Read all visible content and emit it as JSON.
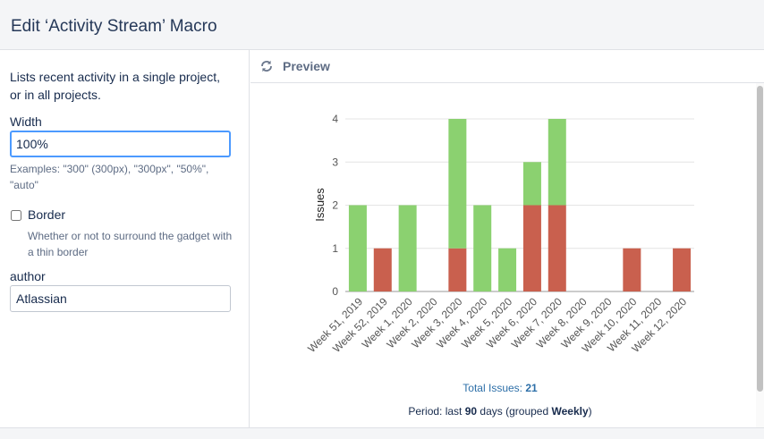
{
  "header": {
    "title": "Edit ‘Activity Stream’ Macro"
  },
  "left": {
    "description": "Lists recent activity in a single project, or in all projects.",
    "width_label": "Width",
    "width_value": "100%",
    "width_hint": "Examples: \"300\" (300px), \"300px\", \"50%\", \"auto\"",
    "border_label": "Border",
    "border_checked": false,
    "border_hint": "Whether or not to surround the gadget with a thin border",
    "author_label": "author",
    "author_value": "Atlassian"
  },
  "preview": {
    "label": "Preview",
    "refresh_icon": "refresh-icon",
    "total_label": "Total Issues: ",
    "total_value": "21",
    "period_prefix": "Period: last ",
    "period_days": "90",
    "period_middle": " days (grouped ",
    "period_group": "Weekly",
    "period_suffix": ")"
  },
  "colors": {
    "created": "#8bd170",
    "resolved": "#c9604e",
    "link": "#2d6fa8"
  },
  "chart_data": {
    "type": "bar",
    "stacked": true,
    "ylabel": "Issues",
    "xlabel": "",
    "ylim": [
      0,
      4
    ],
    "yticks": [
      "0",
      "1",
      "2",
      "3",
      "4"
    ],
    "grid": true,
    "categories": [
      "Week 51, 2019",
      "Week 52, 2019",
      "Week 1, 2020",
      "Week 2, 2020",
      "Week 3, 2020",
      "Week 4, 2020",
      "Week 5, 2020",
      "Week 6, 2020",
      "Week 7, 2020",
      "Week 8, 2020",
      "Week 9, 2020",
      "Week 10, 2020",
      "Week 11, 2020",
      "Week 12, 2020"
    ],
    "series": [
      {
        "values": [
          0,
          1,
          0,
          0,
          1,
          0,
          0,
          2,
          2,
          0,
          0,
          1,
          0,
          1
        ],
        "color": "#c9604e"
      },
      {
        "values": [
          2,
          0,
          2,
          0,
          3,
          2,
          1,
          1,
          2,
          0,
          0,
          0,
          0,
          0
        ],
        "color": "#8bd170"
      }
    ]
  }
}
